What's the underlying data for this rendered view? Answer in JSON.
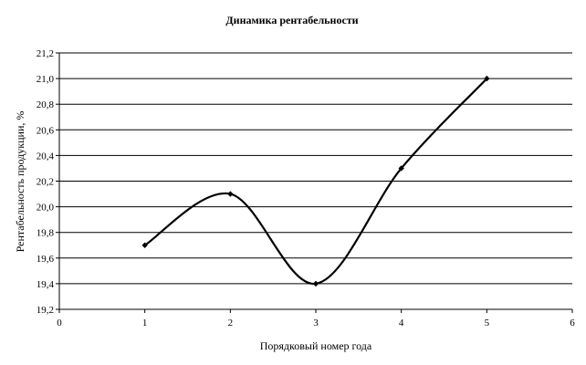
{
  "chart_data": {
    "type": "line",
    "title": "Динамика рентабельности",
    "xlabel": "Порядковый номер года",
    "ylabel": "Рентабельность продукции, %",
    "x": [
      1,
      2,
      3,
      4,
      5
    ],
    "series": [
      {
        "values": [
          19.7,
          20.1,
          19.4,
          20.3,
          21.0
        ]
      }
    ],
    "xlim": [
      0,
      6
    ],
    "ylim": [
      19.2,
      21.2
    ],
    "x_ticks": [
      "0",
      "1",
      "2",
      "3",
      "4",
      "5",
      "6"
    ],
    "y_ticks": [
      "19,2",
      "19,4",
      "19,6",
      "19,8",
      "20,0",
      "20,2",
      "20,4",
      "20,6",
      "20,8",
      "21,0",
      "21,2"
    ],
    "grid": "horizontal",
    "smoothed": true,
    "legend": "none",
    "colors": {
      "line": "#000000",
      "grid": "#000000"
    }
  }
}
